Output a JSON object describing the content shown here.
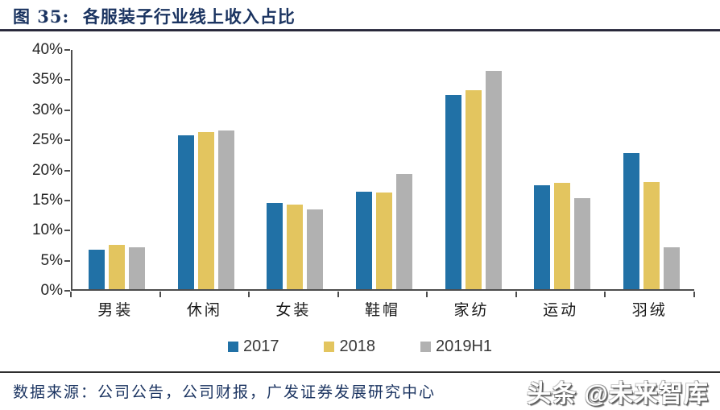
{
  "figure": {
    "title": "图 35:  各服装子行业线上收入占比",
    "source": "数据来源：公司公告，公司财报，广发证券发展研究中心",
    "watermark": "头条 @未来智库"
  },
  "colors": {
    "title_navy": "#1b3461",
    "axis": "#4d4d4d",
    "series_2017": "#2171a6",
    "series_2018": "#e3c55f",
    "series_2019h1": "#b1b1b1"
  },
  "chart_data": {
    "type": "bar",
    "title": "各服装子行业线上收入占比",
    "xlabel": "",
    "ylabel": "",
    "categories": [
      "男装",
      "休闲",
      "女装",
      "鞋帽",
      "家纺",
      "运动",
      "羽绒"
    ],
    "series": [
      {
        "name": "2017",
        "color": "#2171a6",
        "values": [
          6.6,
          25.6,
          14.3,
          16.2,
          32.3,
          17.2,
          22.6
        ]
      },
      {
        "name": "2018",
        "color": "#e3c55f",
        "values": [
          7.3,
          26.1,
          14.1,
          16.1,
          33.1,
          17.7,
          17.8
        ]
      },
      {
        "name": "2019H1",
        "color": "#b1b1b1",
        "values": [
          7.0,
          26.3,
          13.2,
          19.1,
          36.2,
          15.1,
          6.9
        ]
      }
    ],
    "ylim": [
      0,
      40
    ],
    "ytick_step": 5,
    "ytick_labels": [
      "0%",
      "5%",
      "10%",
      "15%",
      "20%",
      "25%",
      "30%",
      "35%",
      "40%"
    ],
    "grid": false,
    "legend_position": "bottom"
  }
}
